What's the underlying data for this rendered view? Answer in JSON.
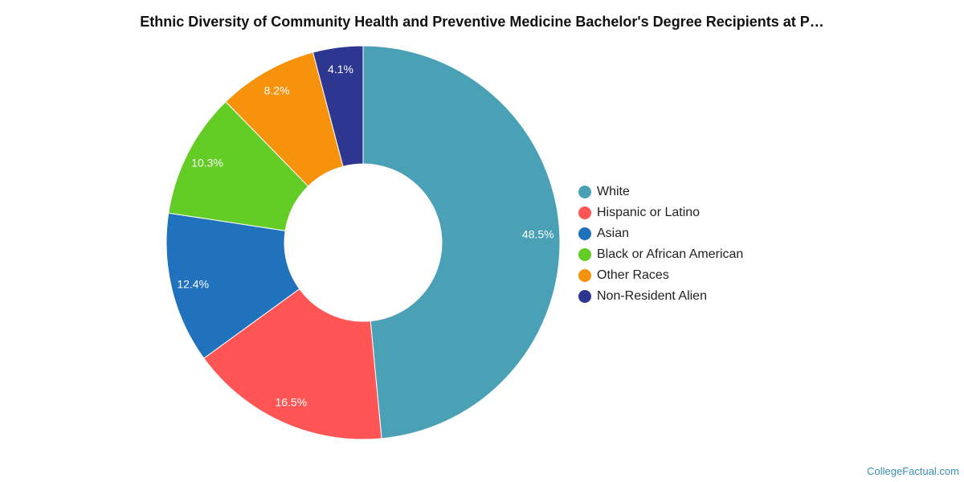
{
  "chart_data": {
    "type": "pie",
    "title": "Ethnic Diversity of Community Health and Preventive Medicine Bachelor's Degree Recipients at P…",
    "donut": true,
    "legend_position": "right",
    "slices": [
      {
        "label": "White",
        "value": 48.5,
        "display": "48.5%",
        "color": "#4aa0b5"
      },
      {
        "label": "Hispanic or Latino",
        "value": 16.5,
        "display": "16.5%",
        "color": "#ff5555"
      },
      {
        "label": "Asian",
        "value": 12.4,
        "display": "12.4%",
        "color": "#1f72bb"
      },
      {
        "label": "Black or African American",
        "value": 10.3,
        "display": "10.3%",
        "color": "#63cd25"
      },
      {
        "label": "Other Races",
        "value": 8.2,
        "display": "8.2%",
        "color": "#f7920c"
      },
      {
        "label": "Non-Resident Alien",
        "value": 4.1,
        "display": "4.1%",
        "color": "#2e378f"
      }
    ]
  },
  "credit": "CollegeFactual.com"
}
